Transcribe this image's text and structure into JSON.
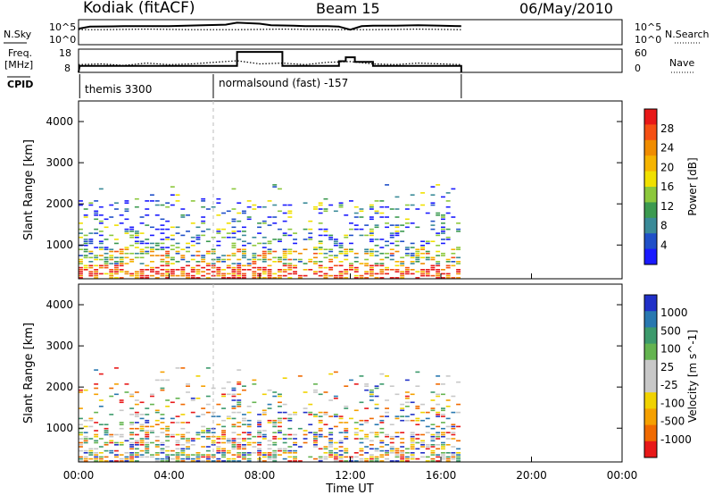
{
  "header": {
    "station": "Kodiak (fitACF)",
    "beam": "Beam 15",
    "date": "06/May/2010"
  },
  "side_labels": {
    "nsky": "N.Sky",
    "freq": "Freq.",
    "mhz": "[MHz]",
    "cpid": "CPID",
    "nsearch": "N.Search",
    "nave": "Nave",
    "nsky_ticks": [
      "10^5",
      "10^0"
    ],
    "freq_ticks": [
      "18",
      "8"
    ],
    "nave_ticks": [
      "60",
      "0"
    ],
    "nsearch_ticks": [
      "10^5",
      "10^0"
    ]
  },
  "cpid_labels": {
    "first": "themis 3300",
    "second": "normalsound (fast) -157"
  },
  "colors": {
    "power_scale": [
      "#1a1aff",
      "#2050c8",
      "#3a8a98",
      "#3c9a50",
      "#8cc83c",
      "#f0e000",
      "#f5b400",
      "#f08c00",
      "#f55014",
      "#e81818"
    ],
    "velocity_scale": [
      "#2030c8",
      "#2878b0",
      "#3c9a6c",
      "#64b450",
      "#c8c8c8",
      "#c8c8c8",
      "#f0d200",
      "#f5a000",
      "#f06a00",
      "#e81818"
    ]
  },
  "chart_data": [
    {
      "type": "line",
      "name": "nsky-nsearch",
      "x_range_hours": [
        0,
        24
      ],
      "series": [
        {
          "name": "N.Sky",
          "style": "solid",
          "x": [
            0.0,
            0.5,
            2.0,
            4.0,
            5.5,
            6.5,
            7.0,
            8.0,
            8.5,
            9.5,
            10.0,
            11.0,
            11.5,
            12.0,
            12.5,
            13.0,
            14.0,
            15.0,
            16.0,
            16.9
          ],
          "y": [
            3.2,
            3.6,
            3.7,
            3.7,
            3.9,
            4.0,
            4.4,
            4.2,
            3.9,
            3.8,
            3.7,
            3.7,
            3.6,
            3.0,
            3.7,
            3.8,
            3.8,
            3.9,
            3.8,
            3.7
          ]
        },
        {
          "name": "N.Search",
          "style": "dotted",
          "x": [
            0.0,
            1.0,
            3.0,
            5.0,
            7.0,
            9.0,
            11.0,
            13.0,
            15.0,
            16.9
          ],
          "y": [
            3.0,
            3.0,
            3.1,
            3.0,
            3.0,
            3.1,
            3.0,
            3.0,
            3.1,
            3.0
          ]
        }
      ],
      "ylim": [
        0,
        5
      ]
    },
    {
      "type": "line",
      "name": "freq-nave",
      "x_range_hours": [
        0,
        24
      ],
      "series": [
        {
          "name": "Freq.",
          "style": "solid",
          "x": [
            0.0,
            0.05,
            7.0,
            7.0,
            9.0,
            9.0,
            11.5,
            11.5,
            11.8,
            11.8,
            12.2,
            12.2,
            13.0,
            13.0,
            16.9,
            16.9
          ],
          "y": [
            8.0,
            10.8,
            10.8,
            16.8,
            16.8,
            10.8,
            10.8,
            12.8,
            12.8,
            14.5,
            14.5,
            12.5,
            12.5,
            10.8,
            10.8,
            8.0
          ]
        },
        {
          "name": "Nave",
          "style": "dotted",
          "x": [
            0.0,
            1.0,
            2.0,
            3.0,
            4.0,
            5.0,
            6.0,
            7.0,
            8.0,
            9.0,
            10.0,
            11.0,
            12.0,
            13.0,
            14.0,
            15.0,
            16.0,
            16.9
          ],
          "y": [
            20,
            22,
            18,
            24,
            20,
            22,
            26,
            30,
            22,
            24,
            20,
            26,
            28,
            22,
            20,
            24,
            22,
            20
          ]
        }
      ],
      "ylim_left": [
        8,
        18
      ],
      "ylim_right": [
        0,
        60
      ]
    },
    {
      "type": "heatmap",
      "name": "power",
      "title": "",
      "xlabel": "",
      "ylabel": "Slant Range [km]",
      "xlim_hours": [
        0,
        24
      ],
      "ylim_km": [
        180,
        4500
      ],
      "yticks": [
        1000,
        2000,
        3000,
        4000
      ],
      "colorbar": {
        "label": "Power [dB]",
        "ticks": [
          4,
          8,
          12,
          16,
          20,
          24,
          28
        ],
        "range": [
          0,
          30
        ]
      },
      "data_extent_hours": [
        0,
        16.9
      ]
    },
    {
      "type": "heatmap",
      "name": "velocity",
      "title": "",
      "xlabel": "Time UT",
      "ylabel": "Slant Range [km]",
      "xlim_hours": [
        0,
        24
      ],
      "ylim_km": [
        180,
        4500
      ],
      "yticks": [
        1000,
        2000,
        3000,
        4000
      ],
      "xticks": [
        "00:00",
        "04:00",
        "08:00",
        "12:00",
        "16:00",
        "20:00",
        "00:00"
      ],
      "colorbar": {
        "label": "Velocity [m s^-1]",
        "ticks": [
          "1000",
          "500",
          "100",
          "25",
          "-25",
          "-100",
          "-500",
          "-1000"
        ]
      },
      "data_extent_hours": [
        0,
        16.9
      ]
    }
  ]
}
